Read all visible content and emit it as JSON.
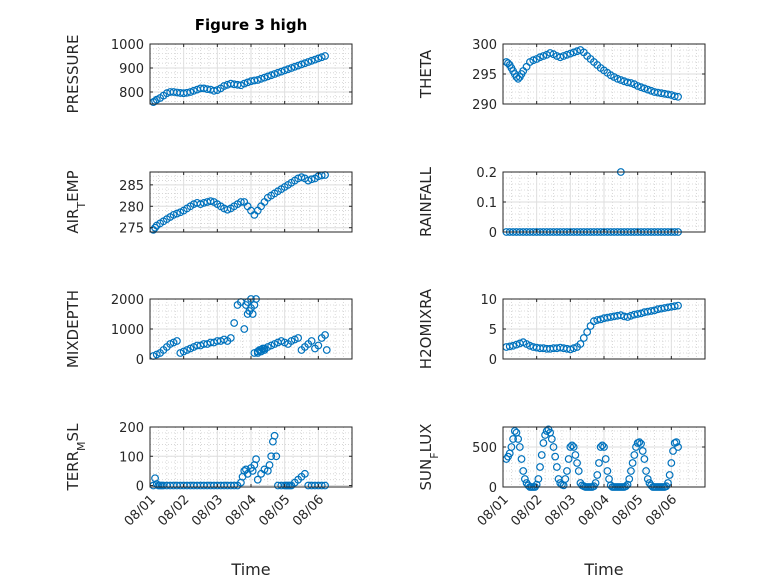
{
  "figure": {
    "title": "Figure 3 high",
    "marker_color": "#0072bd"
  },
  "chart_data": [
    {
      "type": "scatter",
      "title": "Figure 3 high",
      "ylabel": "PRESSURE",
      "ylabel_sub": "",
      "ylabel_tail": "",
      "xlabel": "",
      "ylim": [
        750,
        1000
      ],
      "yticks": [
        800,
        900,
        1000
      ],
      "show_xticklabels": false,
      "x": [
        0.1,
        0.15,
        0.2,
        0.3,
        0.4,
        0.5,
        0.6,
        0.7,
        0.8,
        0.9,
        1.0,
        1.1,
        1.2,
        1.3,
        1.4,
        1.5,
        1.6,
        1.7,
        1.8,
        1.9,
        2.0,
        2.1,
        2.2,
        2.3,
        2.4,
        2.5,
        2.6,
        2.7,
        2.8,
        2.9,
        3.0,
        3.1,
        3.2,
        3.3,
        3.4,
        3.5,
        3.6,
        3.7,
        3.8,
        3.9,
        4.0,
        4.1,
        4.2,
        4.3,
        4.4,
        4.5,
        4.6,
        4.7,
        4.8,
        4.9,
        5.0,
        5.1,
        5.2
      ],
      "y": [
        758,
        762,
        768,
        775,
        785,
        795,
        800,
        800,
        798,
        796,
        795,
        797,
        800,
        805,
        810,
        815,
        815,
        812,
        810,
        805,
        808,
        815,
        825,
        830,
        835,
        832,
        830,
        828,
        835,
        840,
        845,
        848,
        850,
        855,
        860,
        865,
        870,
        875,
        880,
        885,
        890,
        895,
        900,
        905,
        910,
        915,
        920,
        925,
        930,
        935,
        940,
        945,
        950
      ]
    },
    {
      "type": "scatter",
      "title": "",
      "ylabel": "THETA",
      "ylabel_sub": "",
      "ylabel_tail": "",
      "xlabel": "",
      "ylim": [
        290,
        300
      ],
      "yticks": [
        290,
        295,
        300
      ],
      "show_xticklabels": false,
      "x": [
        0.1,
        0.15,
        0.2,
        0.25,
        0.3,
        0.35,
        0.4,
        0.45,
        0.5,
        0.55,
        0.6,
        0.7,
        0.8,
        0.9,
        1.0,
        1.1,
        1.2,
        1.3,
        1.4,
        1.5,
        1.6,
        1.7,
        1.8,
        1.9,
        2.0,
        2.1,
        2.2,
        2.3,
        2.4,
        2.5,
        2.6,
        2.7,
        2.8,
        2.9,
        3.0,
        3.1,
        3.2,
        3.3,
        3.4,
        3.5,
        3.6,
        3.7,
        3.8,
        3.9,
        4.0,
        4.1,
        4.2,
        4.3,
        4.4,
        4.5,
        4.6,
        4.7,
        4.8,
        4.9,
        5.0,
        5.1,
        5.2
      ],
      "y": [
        297,
        296.8,
        296.5,
        296,
        295.5,
        295,
        294.5,
        294.2,
        294.5,
        295,
        295.5,
        296.2,
        297,
        297.3,
        297.5,
        297.8,
        298,
        298.2,
        298.5,
        298.3,
        298,
        297.8,
        298,
        298.2,
        298.4,
        298.6,
        298.8,
        299,
        298.6,
        298,
        297.5,
        297,
        296.5,
        296,
        295.6,
        295.2,
        294.8,
        294.5,
        294.2,
        294,
        293.8,
        293.6,
        293.5,
        293.3,
        293,
        292.8,
        292.6,
        292.4,
        292.2,
        292,
        291.9,
        291.8,
        291.7,
        291.6,
        291.5,
        291.3,
        291.2
      ]
    },
    {
      "type": "scatter",
      "title": "",
      "ylabel": "AIR",
      "ylabel_sub": "T",
      "ylabel_tail": "EMP",
      "xlabel": "",
      "ylim": [
        274,
        288
      ],
      "yticks": [
        275,
        280,
        285
      ],
      "show_xticklabels": false,
      "x": [
        0.1,
        0.15,
        0.2,
        0.3,
        0.4,
        0.5,
        0.6,
        0.7,
        0.8,
        0.9,
        1.0,
        1.1,
        1.2,
        1.3,
        1.4,
        1.5,
        1.6,
        1.7,
        1.8,
        1.9,
        2.0,
        2.1,
        2.2,
        2.3,
        2.4,
        2.5,
        2.6,
        2.7,
        2.8,
        2.9,
        3.0,
        3.1,
        3.2,
        3.3,
        3.4,
        3.5,
        3.6,
        3.7,
        3.8,
        3.9,
        4.0,
        4.1,
        4.2,
        4.3,
        4.4,
        4.5,
        4.6,
        4.7,
        4.8,
        4.9,
        5.0,
        5.1,
        5.2
      ],
      "y": [
        274.5,
        275,
        275.5,
        276,
        276.5,
        277,
        277.5,
        278,
        278.3,
        278.6,
        279,
        279.5,
        280,
        280.5,
        280.8,
        280.5,
        280.8,
        281,
        281.2,
        281,
        280.5,
        280,
        279.5,
        279.2,
        279.5,
        280,
        280.5,
        281,
        281,
        280,
        279,
        278,
        279,
        280,
        281,
        282,
        282.5,
        283,
        283.5,
        284,
        284.5,
        285,
        285.5,
        286,
        286.5,
        286.8,
        286.5,
        286,
        286.3,
        286.5,
        287,
        287.2,
        287.3
      ]
    },
    {
      "type": "scatter",
      "title": "",
      "ylabel": "RAINFALL",
      "ylabel_sub": "",
      "ylabel_tail": "",
      "xlabel": "",
      "ylim": [
        0,
        0.2
      ],
      "yticks": [
        0,
        0.1,
        0.2
      ],
      "show_xticklabels": false,
      "x": [
        0.1,
        0.2,
        0.3,
        0.4,
        0.5,
        0.6,
        0.7,
        0.8,
        0.9,
        1.0,
        1.1,
        1.2,
        1.3,
        1.4,
        1.5,
        1.6,
        1.7,
        1.8,
        1.9,
        2.0,
        2.1,
        2.2,
        2.3,
        2.4,
        2.5,
        2.6,
        2.7,
        2.8,
        2.9,
        3.0,
        3.1,
        3.2,
        3.3,
        3.4,
        3.5,
        3.6,
        3.7,
        3.8,
        3.9,
        4.0,
        4.1,
        4.2,
        4.3,
        4.4,
        4.5,
        4.6,
        4.7,
        4.8,
        4.9,
        5.0,
        5.1,
        5.2,
        3.5
      ],
      "y": [
        0,
        0,
        0,
        0,
        0,
        0,
        0,
        0,
        0,
        0,
        0,
        0,
        0,
        0,
        0,
        0,
        0,
        0,
        0,
        0,
        0,
        0,
        0,
        0,
        0,
        0,
        0,
        0,
        0,
        0,
        0,
        0,
        0,
        0,
        0,
        0,
        0,
        0,
        0,
        0,
        0,
        0,
        0,
        0,
        0,
        0,
        0,
        0,
        0,
        0,
        0,
        0,
        0.2
      ]
    },
    {
      "type": "scatter",
      "title": "",
      "ylabel": "MIXDEPTH",
      "ylabel_sub": "",
      "ylabel_tail": "",
      "xlabel": "",
      "ylim": [
        0,
        2000
      ],
      "yticks": [
        0,
        1000,
        2000
      ],
      "show_xticklabels": false,
      "x": [
        0.1,
        0.2,
        0.3,
        0.4,
        0.5,
        0.6,
        0.7,
        0.8,
        0.9,
        1.0,
        1.1,
        1.2,
        1.3,
        1.4,
        1.5,
        1.6,
        1.7,
        1.8,
        1.9,
        2.0,
        2.1,
        2.2,
        2.3,
        2.4,
        2.5,
        2.6,
        2.7,
        2.8,
        2.9,
        3.0,
        3.1,
        3.2,
        3.3,
        3.4,
        3.5,
        3.6,
        3.7,
        3.8,
        3.9,
        4.0,
        4.1,
        4.2,
        4.3,
        4.4,
        4.5,
        4.6,
        4.7,
        4.8,
        4.9,
        5.0,
        5.1,
        5.2,
        5.25,
        2.85,
        2.9,
        2.95,
        3.0,
        3.05,
        3.1,
        3.15,
        3.2,
        3.25,
        3.3,
        3.35,
        3.4
      ],
      "y": [
        100,
        150,
        200,
        300,
        400,
        500,
        550,
        600,
        200,
        250,
        300,
        350,
        400,
        450,
        450,
        500,
        500,
        550,
        550,
        600,
        600,
        650,
        600,
        700,
        1200,
        1800,
        1900,
        1000,
        1500,
        2000,
        200,
        250,
        300,
        350,
        400,
        450,
        500,
        550,
        600,
        550,
        500,
        600,
        650,
        700,
        300,
        400,
        500,
        600,
        350,
        450,
        700,
        800,
        300,
        1800,
        1900,
        1600,
        1700,
        1500,
        1800,
        2000,
        200,
        300,
        250,
        350,
        300
      ]
    },
    {
      "type": "scatter",
      "title": "",
      "ylabel": "H2OMIXRA",
      "ylabel_sub": "",
      "ylabel_tail": "",
      "xlabel": "",
      "ylim": [
        0,
        10
      ],
      "yticks": [
        0,
        5,
        10
      ],
      "show_xticklabels": false,
      "x": [
        0.1,
        0.2,
        0.3,
        0.4,
        0.5,
        0.6,
        0.7,
        0.8,
        0.9,
        1.0,
        1.1,
        1.2,
        1.3,
        1.4,
        1.5,
        1.6,
        1.7,
        1.8,
        1.9,
        2.0,
        2.1,
        2.2,
        2.3,
        2.4,
        2.5,
        2.6,
        2.7,
        2.8,
        2.9,
        3.0,
        3.1,
        3.2,
        3.3,
        3.4,
        3.5,
        3.6,
        3.7,
        3.8,
        3.9,
        4.0,
        4.1,
        4.2,
        4.3,
        4.4,
        4.5,
        4.6,
        4.7,
        4.8,
        4.9,
        5.0,
        5.1,
        5.2
      ],
      "y": [
        2,
        2.1,
        2.2,
        2.4,
        2.6,
        2.8,
        2.5,
        2.2,
        2.0,
        1.9,
        1.8,
        1.8,
        1.7,
        1.7,
        1.8,
        1.8,
        1.9,
        1.8,
        1.7,
        1.6,
        1.8,
        2.0,
        2.5,
        3.5,
        4.5,
        5.5,
        6.3,
        6.5,
        6.6,
        6.8,
        6.9,
        7.0,
        7.1,
        7.2,
        7.3,
        7.1,
        7.0,
        7.2,
        7.4,
        7.5,
        7.6,
        7.8,
        7.9,
        8.0,
        8.1,
        8.3,
        8.4,
        8.5,
        8.6,
        8.7,
        8.8,
        8.9
      ]
    },
    {
      "type": "scatter",
      "title": "",
      "ylabel": "TERR",
      "ylabel_sub": "M",
      "ylabel_tail": "SL",
      "xlabel": "Time",
      "ylim": [
        -5,
        200
      ],
      "yticks": [
        0,
        100,
        200
      ],
      "show_xticklabels": true,
      "x": [
        0.1,
        0.15,
        0.2,
        0.25,
        0.3,
        0.35,
        0.4,
        0.5,
        0.6,
        0.7,
        0.8,
        0.9,
        1.0,
        1.1,
        1.2,
        1.3,
        1.4,
        1.5,
        1.6,
        1.7,
        1.8,
        1.9,
        2.0,
        2.1,
        2.2,
        2.3,
        2.4,
        2.5,
        2.6,
        2.7,
        2.75,
        2.8,
        2.85,
        2.9,
        3.0,
        3.05,
        3.1,
        3.15,
        3.2,
        3.3,
        3.4,
        3.5,
        3.55,
        3.6,
        3.65,
        3.7,
        3.75,
        3.8,
        3.9,
        4.0,
        4.05,
        4.1,
        4.15,
        4.2,
        4.3,
        4.4,
        4.5,
        4.6,
        4.7,
        4.8,
        4.9,
        5.0,
        5.1,
        5.2
      ],
      "y": [
        0,
        25,
        5,
        0,
        0,
        0,
        0,
        0,
        0,
        0,
        0,
        0,
        0,
        0,
        0,
        0,
        0,
        0,
        0,
        0,
        0,
        0,
        0,
        0,
        0,
        0,
        0,
        0,
        0,
        10,
        30,
        50,
        55,
        40,
        60,
        50,
        70,
        90,
        20,
        40,
        55,
        50,
        70,
        100,
        150,
        170,
        100,
        0,
        0,
        0,
        0,
        0,
        0,
        0,
        10,
        20,
        30,
        40,
        0,
        0,
        0,
        0,
        0,
        0
      ]
    },
    {
      "type": "scatter",
      "title": "",
      "ylabel": "SUN",
      "ylabel_sub": "F",
      "ylabel_tail": "LUX",
      "xlabel": "Time",
      "ylim": [
        0,
        750
      ],
      "yticks": [
        0,
        500
      ],
      "show_xticklabels": true,
      "x": [
        0.1,
        0.15,
        0.2,
        0.25,
        0.3,
        0.35,
        0.4,
        0.45,
        0.5,
        0.55,
        0.6,
        0.65,
        0.7,
        0.75,
        0.8,
        0.85,
        0.9,
        0.95,
        1.0,
        1.05,
        1.1,
        1.15,
        1.2,
        1.25,
        1.3,
        1.35,
        1.4,
        1.45,
        1.5,
        1.55,
        1.6,
        1.65,
        1.7,
        1.75,
        1.8,
        1.85,
        1.9,
        1.95,
        2.0,
        2.05,
        2.1,
        2.15,
        2.2,
        2.25,
        2.3,
        2.35,
        2.4,
        2.45,
        2.5,
        2.55,
        2.6,
        2.65,
        2.7,
        2.75,
        2.8,
        2.85,
        2.9,
        2.95,
        3.0,
        3.05,
        3.1,
        3.15,
        3.2,
        3.25,
        3.3,
        3.35,
        3.4,
        3.45,
        3.5,
        3.55,
        3.6,
        3.65,
        3.7,
        3.75,
        3.8,
        3.85,
        3.9,
        3.95,
        4.0,
        4.05,
        4.1,
        4.15,
        4.2,
        4.25,
        4.3,
        4.35,
        4.4,
        4.45,
        4.5,
        4.55,
        4.6,
        4.65,
        4.7,
        4.75,
        4.8,
        4.85,
        4.9,
        4.95,
        5.0,
        5.05,
        5.1,
        5.15,
        5.2
      ],
      "y": [
        350,
        380,
        420,
        500,
        600,
        700,
        680,
        600,
        500,
        350,
        200,
        100,
        50,
        20,
        0,
        0,
        0,
        0,
        30,
        100,
        250,
        400,
        550,
        650,
        700,
        720,
        680,
        600,
        500,
        380,
        250,
        100,
        50,
        30,
        20,
        100,
        200,
        350,
        500,
        520,
        500,
        400,
        300,
        200,
        50,
        20,
        10,
        0,
        0,
        0,
        0,
        0,
        10,
        50,
        150,
        300,
        500,
        520,
        500,
        350,
        200,
        100,
        20,
        0,
        0,
        0,
        0,
        0,
        0,
        0,
        0,
        10,
        30,
        100,
        200,
        300,
        400,
        500,
        550,
        560,
        540,
        450,
        350,
        200,
        100,
        50,
        20,
        0,
        0,
        0,
        0,
        0,
        0,
        0,
        0,
        10,
        50,
        150,
        300,
        450,
        550,
        560,
        500
      ]
    }
  ],
  "x_axis": {
    "ticks": [
      0,
      1,
      2,
      3,
      4,
      5,
      6
    ],
    "tick_labels": [
      "08/01",
      "08/02",
      "08/03",
      "08/04",
      "08/05",
      "08/06"
    ],
    "tick_label_days": [
      0,
      1,
      2,
      3,
      4,
      5
    ],
    "label": "Time"
  }
}
